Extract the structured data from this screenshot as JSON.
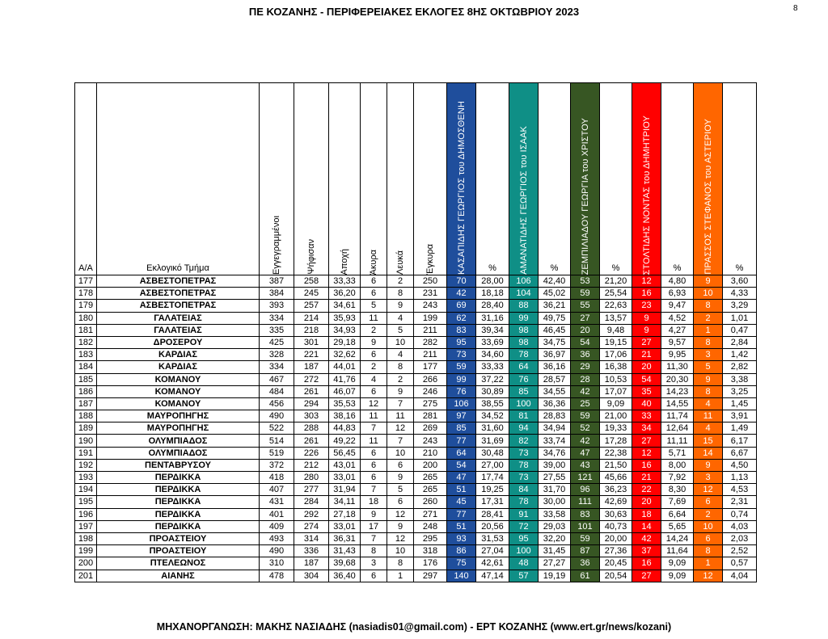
{
  "header": {
    "title": "ΠΕ ΚΟΖΑΝΗΣ - ΠΕΡΙΦΕΡΕΙΑΚΕΣ ΕΚΛΟΓΕΣ 8ΗΣ ΟΚΤΩΒΡΙΟΥ 2023",
    "page_number": "8"
  },
  "footer": {
    "text": "ΜΗΧΑΝΟΡΓΑΝΩΣΗ: ΜΑΚΗΣ ΝΑΣΙΑΔΗΣ (nasiadis01@gmail.com) - ΕΡΤ ΚΟΖΑΝΗΣ (www.ert.gr/news/kozani)"
  },
  "columns": {
    "aa": "Α/Α",
    "section": "Εκλογικό Τμήμα",
    "registered": "Εγγεγραμμένοι",
    "voted": "Ψήφισαν",
    "abstention": "Αποχή",
    "invalid": "Άκυρα",
    "blank": "Λευκά",
    "valid": "Έγκυρα",
    "candidates": [
      {
        "name": "ΚΑΣΑΠΙΔΗΣ ΓΕΩΡΓΙΟΣ του ΔΗΜΟΣΘΕΝΗ",
        "color": "#1f4e9c",
        "pct_label": "%"
      },
      {
        "name": "ΑΜΑΝΑΤΙΔΗΣ ΓΕΩΡΓΙΟΣ του ΙΣΑΑΚ",
        "color": "#0f8f86",
        "pct_label": "%"
      },
      {
        "name": "ΖΕΜΠΙΛΙΑΔΟΥ ΓΕΩΡΓΙΑ του ΧΡΙΣΤΟΥ",
        "color": "#375623",
        "pct_label": "%"
      },
      {
        "name": "ΣΤΟΛΤΙΔΗΣ ΝΟΝΤΑΣ του ΔΗΜΗΤΡΙΟΥ",
        "color": "#ff0000",
        "pct_label": "%"
      },
      {
        "name": "ΠΡΑΣΣΟΣ ΣΤΕΦΑΝΟΣ του ΑΣΤΕΡΙΟΥ",
        "color": "#ff6600",
        "pct_label": "%"
      }
    ]
  },
  "rows": [
    [
      "177",
      "ΑΣΒΕΣΤΟΠΕΤΡΑΣ",
      "387",
      "258",
      "33,33",
      "6",
      "2",
      "250",
      "70",
      "28,00",
      "106",
      "42,40",
      "53",
      "21,20",
      "12",
      "4,80",
      "9",
      "3,60"
    ],
    [
      "178",
      "ΑΣΒΕΣΤΟΠΕΤΡΑΣ",
      "384",
      "245",
      "36,20",
      "6",
      "8",
      "231",
      "42",
      "18,18",
      "104",
      "45,02",
      "59",
      "25,54",
      "16",
      "6,93",
      "10",
      "4,33"
    ],
    [
      "179",
      "ΑΣΒΕΣΤΟΠΕΤΡΑΣ",
      "393",
      "257",
      "34,61",
      "5",
      "9",
      "243",
      "69",
      "28,40",
      "88",
      "36,21",
      "55",
      "22,63",
      "23",
      "9,47",
      "8",
      "3,29"
    ],
    [
      "180",
      "ΓΑΛΑΤΕΙΑΣ",
      "334",
      "214",
      "35,93",
      "11",
      "4",
      "199",
      "62",
      "31,16",
      "99",
      "49,75",
      "27",
      "13,57",
      "9",
      "4,52",
      "2",
      "1,01"
    ],
    [
      "181",
      "ΓΑΛΑΤΕΙΑΣ",
      "335",
      "218",
      "34,93",
      "2",
      "5",
      "211",
      "83",
      "39,34",
      "98",
      "46,45",
      "20",
      "9,48",
      "9",
      "4,27",
      "1",
      "0,47"
    ],
    [
      "182",
      "ΔΡΟΣΕΡΟΥ",
      "425",
      "301",
      "29,18",
      "9",
      "10",
      "282",
      "95",
      "33,69",
      "98",
      "34,75",
      "54",
      "19,15",
      "27",
      "9,57",
      "8",
      "2,84"
    ],
    [
      "183",
      "ΚΑΡΔΙΑΣ",
      "328",
      "221",
      "32,62",
      "6",
      "4",
      "211",
      "73",
      "34,60",
      "78",
      "36,97",
      "36",
      "17,06",
      "21",
      "9,95",
      "3",
      "1,42"
    ],
    [
      "184",
      "ΚΑΡΔΙΑΣ",
      "334",
      "187",
      "44,01",
      "2",
      "8",
      "177",
      "59",
      "33,33",
      "64",
      "36,16",
      "29",
      "16,38",
      "20",
      "11,30",
      "5",
      "2,82"
    ],
    [
      "185",
      "ΚΟΜΑΝΟΥ",
      "467",
      "272",
      "41,76",
      "4",
      "2",
      "266",
      "99",
      "37,22",
      "76",
      "28,57",
      "28",
      "10,53",
      "54",
      "20,30",
      "9",
      "3,38"
    ],
    [
      "186",
      "ΚΟΜΑΝΟΥ",
      "484",
      "261",
      "46,07",
      "6",
      "9",
      "246",
      "76",
      "30,89",
      "85",
      "34,55",
      "42",
      "17,07",
      "35",
      "14,23",
      "8",
      "3,25"
    ],
    [
      "187",
      "ΚΟΜΑΝΟΥ",
      "456",
      "294",
      "35,53",
      "12",
      "7",
      "275",
      "106",
      "38,55",
      "100",
      "36,36",
      "25",
      "9,09",
      "40",
      "14,55",
      "4",
      "1,45"
    ],
    [
      "188",
      "ΜΑΥΡΟΠΗΓΗΣ",
      "490",
      "303",
      "38,16",
      "11",
      "11",
      "281",
      "97",
      "34,52",
      "81",
      "28,83",
      "59",
      "21,00",
      "33",
      "11,74",
      "11",
      "3,91"
    ],
    [
      "189",
      "ΜΑΥΡΟΠΗΓΗΣ",
      "522",
      "288",
      "44,83",
      "7",
      "12",
      "269",
      "85",
      "31,60",
      "94",
      "34,94",
      "52",
      "19,33",
      "34",
      "12,64",
      "4",
      "1,49"
    ],
    [
      "190",
      "ΟΛΥΜΠΙΑΔΟΣ",
      "514",
      "261",
      "49,22",
      "11",
      "7",
      "243",
      "77",
      "31,69",
      "82",
      "33,74",
      "42",
      "17,28",
      "27",
      "11,11",
      "15",
      "6,17"
    ],
    [
      "191",
      "ΟΛΥΜΠΙΑΔΟΣ",
      "519",
      "226",
      "56,45",
      "6",
      "10",
      "210",
      "64",
      "30,48",
      "73",
      "34,76",
      "47",
      "22,38",
      "12",
      "5,71",
      "14",
      "6,67"
    ],
    [
      "192",
      "ΠΕΝΤΑΒΡΥΣΟΥ",
      "372",
      "212",
      "43,01",
      "6",
      "6",
      "200",
      "54",
      "27,00",
      "78",
      "39,00",
      "43",
      "21,50",
      "16",
      "8,00",
      "9",
      "4,50"
    ],
    [
      "193",
      "ΠΕΡΔΙΚΚΑ",
      "418",
      "280",
      "33,01",
      "6",
      "9",
      "265",
      "47",
      "17,74",
      "73",
      "27,55",
      "121",
      "45,66",
      "21",
      "7,92",
      "3",
      "1,13"
    ],
    [
      "194",
      "ΠΕΡΔΙΚΚΑ",
      "407",
      "277",
      "31,94",
      "7",
      "5",
      "265",
      "51",
      "19,25",
      "84",
      "31,70",
      "96",
      "36,23",
      "22",
      "8,30",
      "12",
      "4,53"
    ],
    [
      "195",
      "ΠΕΡΔΙΚΚΑ",
      "431",
      "284",
      "34,11",
      "18",
      "6",
      "260",
      "45",
      "17,31",
      "78",
      "30,00",
      "111",
      "42,69",
      "20",
      "7,69",
      "6",
      "2,31"
    ],
    [
      "196",
      "ΠΕΡΔΙΚΚΑ",
      "401",
      "292",
      "27,18",
      "9",
      "12",
      "271",
      "77",
      "28,41",
      "91",
      "33,58",
      "83",
      "30,63",
      "18",
      "6,64",
      "2",
      "0,74"
    ],
    [
      "197",
      "ΠΕΡΔΙΚΚΑ",
      "409",
      "274",
      "33,01",
      "17",
      "9",
      "248",
      "51",
      "20,56",
      "72",
      "29,03",
      "101",
      "40,73",
      "14",
      "5,65",
      "10",
      "4,03"
    ],
    [
      "198",
      "ΠΡΟΑΣΤΕΙΟΥ",
      "493",
      "314",
      "36,31",
      "7",
      "12",
      "295",
      "93",
      "31,53",
      "95",
      "32,20",
      "59",
      "20,00",
      "42",
      "14,24",
      "6",
      "2,03"
    ],
    [
      "199",
      "ΠΡΟΑΣΤΕΙΟΥ",
      "490",
      "336",
      "31,43",
      "8",
      "10",
      "318",
      "86",
      "27,04",
      "100",
      "31,45",
      "87",
      "27,36",
      "37",
      "11,64",
      "8",
      "2,52"
    ],
    [
      "200",
      "ΠΤΕΛΕΩΝΟΣ",
      "310",
      "187",
      "39,68",
      "3",
      "8",
      "176",
      "75",
      "42,61",
      "48",
      "27,27",
      "36",
      "20,45",
      "16",
      "9,09",
      "1",
      "0,57"
    ],
    [
      "201",
      "ΑΙΑΝΗΣ",
      "478",
      "304",
      "36,40",
      "6",
      "1",
      "297",
      "140",
      "47,14",
      "57",
      "19,19",
      "61",
      "20,54",
      "27",
      "9,09",
      "12",
      "4,04"
    ]
  ]
}
